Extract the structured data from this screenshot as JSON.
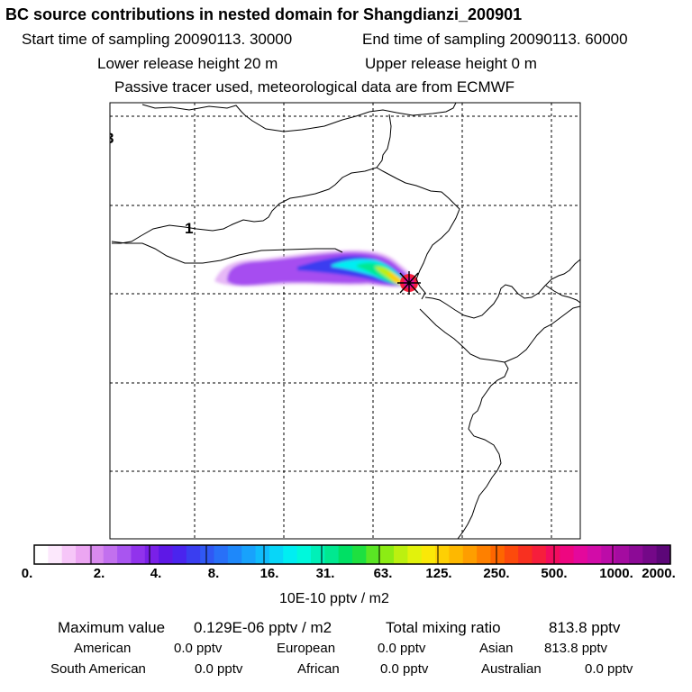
{
  "header": {
    "title": "BC  source contributions in nested domain for Shangdianzi_200901",
    "start_label": "Start time of sampling 20090113. 30000",
    "end_label": "End time of sampling 20090113. 60000",
    "lower_label": "Lower release height   20 m",
    "upper_label": "Upper release height    0 m",
    "tracer_label": "Passive tracer used, meteorological data are from ECMWF"
  },
  "map": {
    "region_labels": [
      "3",
      "1"
    ],
    "station_marker": "star-marker",
    "colors": {
      "border": "#000000",
      "grid": "#000000"
    }
  },
  "colorbar": {
    "ticks": [
      "0.",
      "2.",
      "4.",
      "8.",
      "16.",
      "31.",
      "63.",
      "125.",
      "250.",
      "500.",
      "1000.",
      "2000."
    ],
    "unit": "10E-10 pptv / m2",
    "colors": [
      "#ffffff",
      "#fce8fc",
      "#f6c6f8",
      "#eca6f2",
      "#d98aee",
      "#c270ee",
      "#a955f0",
      "#9133ec",
      "#7a20e8",
      "#5e18e6",
      "#4a24ee",
      "#3a3ef0",
      "#3058f4",
      "#2870f8",
      "#1e88fa",
      "#18a2fc",
      "#10bcfc",
      "#08d6f8",
      "#00eef2",
      "#00f8dc",
      "#00f0b8",
      "#00e890",
      "#00e064",
      "#1ee040",
      "#5ae624",
      "#8cec14",
      "#bcf010",
      "#e2f20c",
      "#fae808",
      "#fed004",
      "#feb800",
      "#fe9e00",
      "#fe8000",
      "#fe6600",
      "#fc4a0c",
      "#f83020",
      "#f61e3c",
      "#f20c5e",
      "#ee0680",
      "#e4089c",
      "#d20ca8",
      "#bc0ca8",
      "#a40ca0",
      "#8c0a96",
      "#740888",
      "#5c0678"
    ]
  },
  "summary": {
    "max_label": "Maximum value",
    "max_value": "0.129E-06 pptv / m2",
    "total_label": "Total mixing ratio",
    "total_value": "813.8 pptv",
    "regions": [
      {
        "name": "American",
        "value": "0.0 pptv"
      },
      {
        "name": "European",
        "value": "0.0 pptv"
      },
      {
        "name": "Asian",
        "value": "813.8 pptv"
      },
      {
        "name": "South American",
        "value": "0.0 pptv"
      },
      {
        "name": "African",
        "value": "0.0 pptv"
      },
      {
        "name": "Australian",
        "value": "0.0 pptv"
      }
    ]
  }
}
